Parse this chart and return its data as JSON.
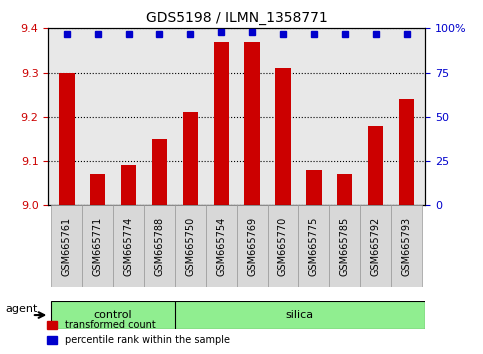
{
  "title": "GDS5198 / ILMN_1358771",
  "samples": [
    "GSM665761",
    "GSM665771",
    "GSM665774",
    "GSM665788",
    "GSM665750",
    "GSM665754",
    "GSM665769",
    "GSM665770",
    "GSM665775",
    "GSM665785",
    "GSM665792",
    "GSM665793"
  ],
  "red_values": [
    9.3,
    9.07,
    9.09,
    9.15,
    9.21,
    9.37,
    9.37,
    9.31,
    9.08,
    9.07,
    9.18,
    9.24
  ],
  "blue_values": [
    97,
    97,
    97,
    97,
    97,
    98,
    98,
    97,
    97,
    97,
    97,
    97
  ],
  "groups": [
    {
      "label": "control",
      "start": 0,
      "end": 4,
      "color": "#90EE90"
    },
    {
      "label": "silica",
      "start": 4,
      "end": 12,
      "color": "#90EE90"
    }
  ],
  "group_label": "agent",
  "ylim_left": [
    9.0,
    9.4
  ],
  "ylim_right": [
    0,
    100
  ],
  "yticks_left": [
    9.0,
    9.1,
    9.2,
    9.3,
    9.4
  ],
  "yticks_right": [
    0,
    25,
    50,
    75,
    100
  ],
  "ytick_labels_right": [
    "0",
    "25",
    "50",
    "75",
    "100%"
  ],
  "bar_color": "#CC0000",
  "dot_color": "#0000CC",
  "bg_plot": "#E8E8E8",
  "bg_xlabel": "#C8C8C8",
  "legend_items": [
    "transformed count",
    "percentile rank within the sample"
  ],
  "legend_colors": [
    "#CC0000",
    "#0000CC"
  ]
}
